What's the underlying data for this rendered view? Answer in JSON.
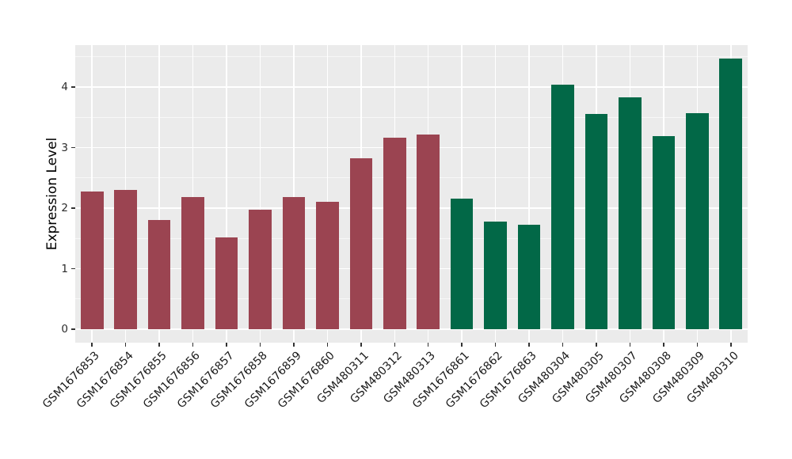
{
  "chart_data": {
    "type": "bar",
    "title": "",
    "xlabel": "",
    "ylabel": "Expression Level",
    "categories": [
      "GSM1676853",
      "GSM1676854",
      "GSM1676855",
      "GSM1676856",
      "GSM1676857",
      "GSM1676858",
      "GSM1676859",
      "GSM1676860",
      "GSM480311",
      "GSM480312",
      "GSM480313",
      "GSM1676861",
      "GSM1676862",
      "GSM1676863",
      "GSM480304",
      "GSM480305",
      "GSM480307",
      "GSM480308",
      "GSM480309",
      "GSM480310"
    ],
    "values": [
      2.27,
      2.3,
      1.81,
      2.18,
      1.52,
      1.98,
      2.18,
      2.1,
      2.82,
      3.16,
      3.22,
      2.16,
      1.78,
      1.73,
      4.04,
      3.56,
      3.83,
      3.19,
      3.57,
      4.47
    ],
    "group_index": [
      0,
      0,
      0,
      0,
      0,
      0,
      0,
      0,
      0,
      0,
      0,
      1,
      1,
      1,
      1,
      1,
      1,
      1,
      1,
      1
    ],
    "palette": [
      "#9B4451",
      "#026847"
    ],
    "yticks": [
      0,
      1,
      2,
      3,
      4
    ],
    "minor_yticks": [
      0.5,
      1.5,
      2.5,
      3.5,
      4.5
    ],
    "ylim": [
      -0.22,
      4.7
    ],
    "grid": true,
    "legend": false,
    "panel_bg": "#EBEBEB",
    "grid_color": "#FFFFFF",
    "tick_color": "#333333",
    "orientation": "vertical"
  }
}
